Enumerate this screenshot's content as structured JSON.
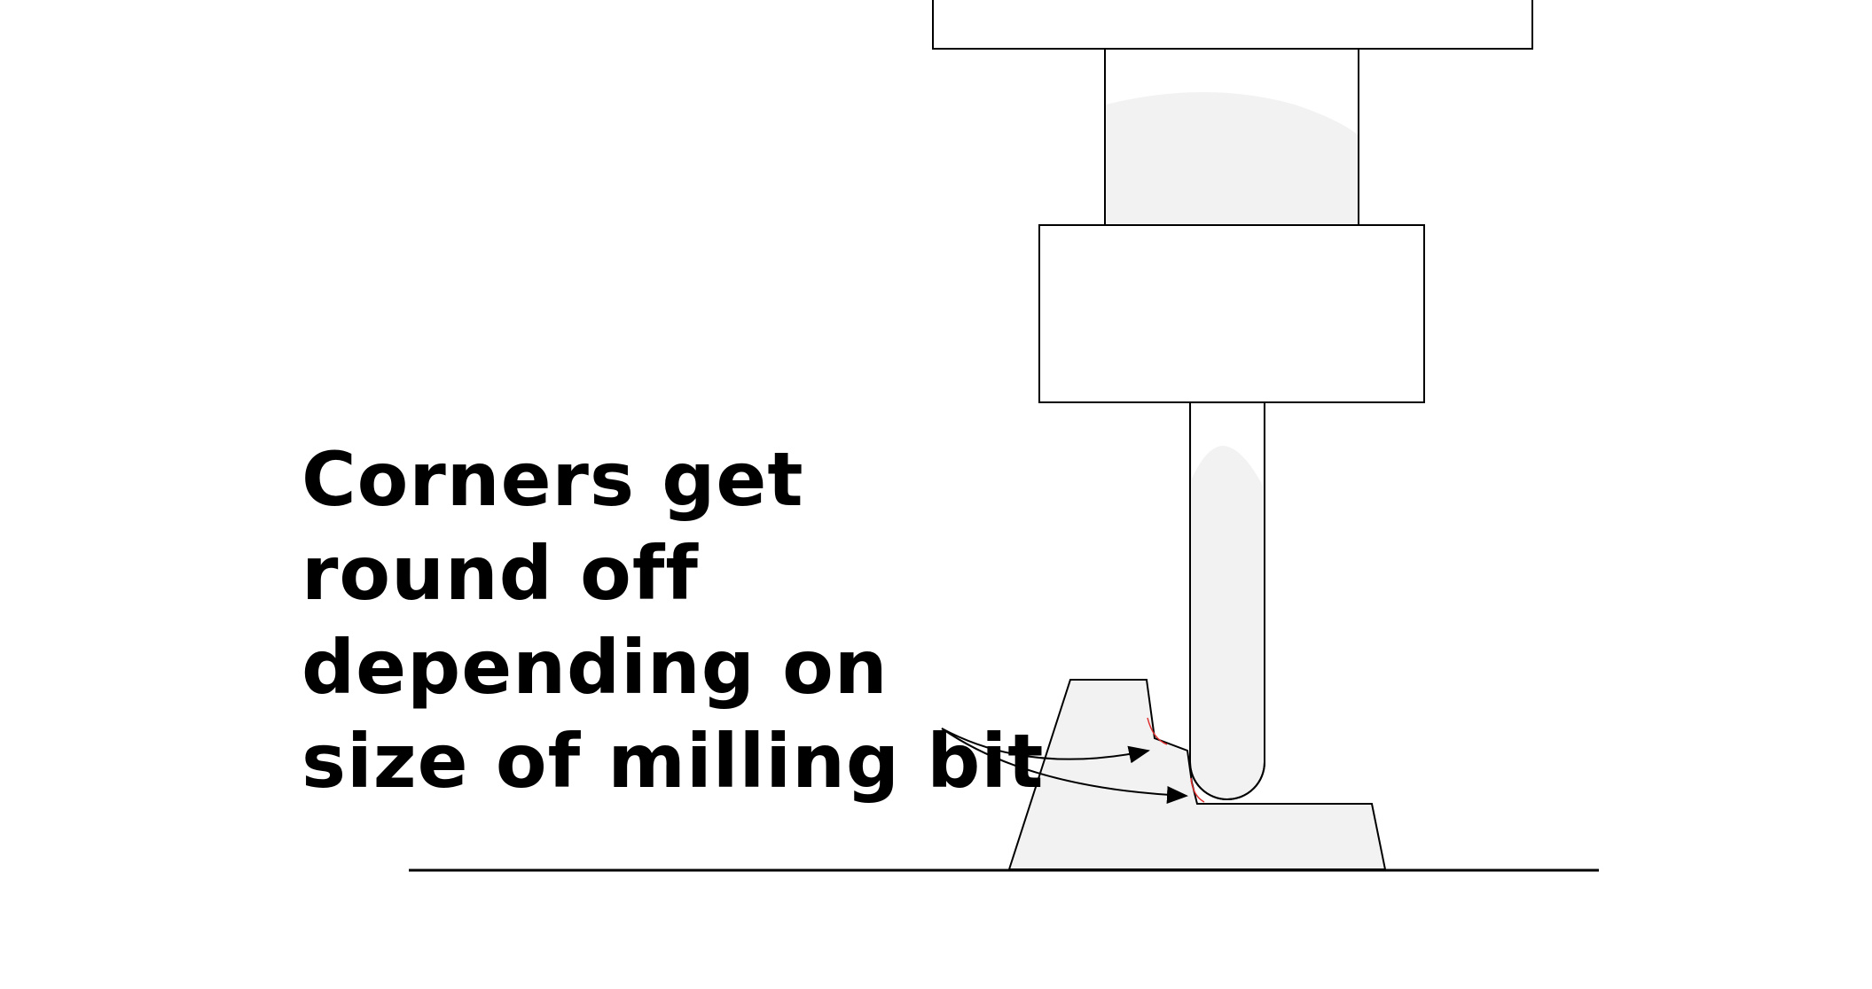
{
  "caption": {
    "lines": [
      "Corners get",
      "round off",
      "depending on",
      "size of milling bit"
    ]
  },
  "colors": {
    "stroke": "#000000",
    "fill": "#f2f2f2",
    "highlight": "#ffffff",
    "corner_mark": "#e03030"
  },
  "icons": {
    "arrow_upper": "arrow-icon",
    "arrow_lower": "arrow-icon"
  }
}
